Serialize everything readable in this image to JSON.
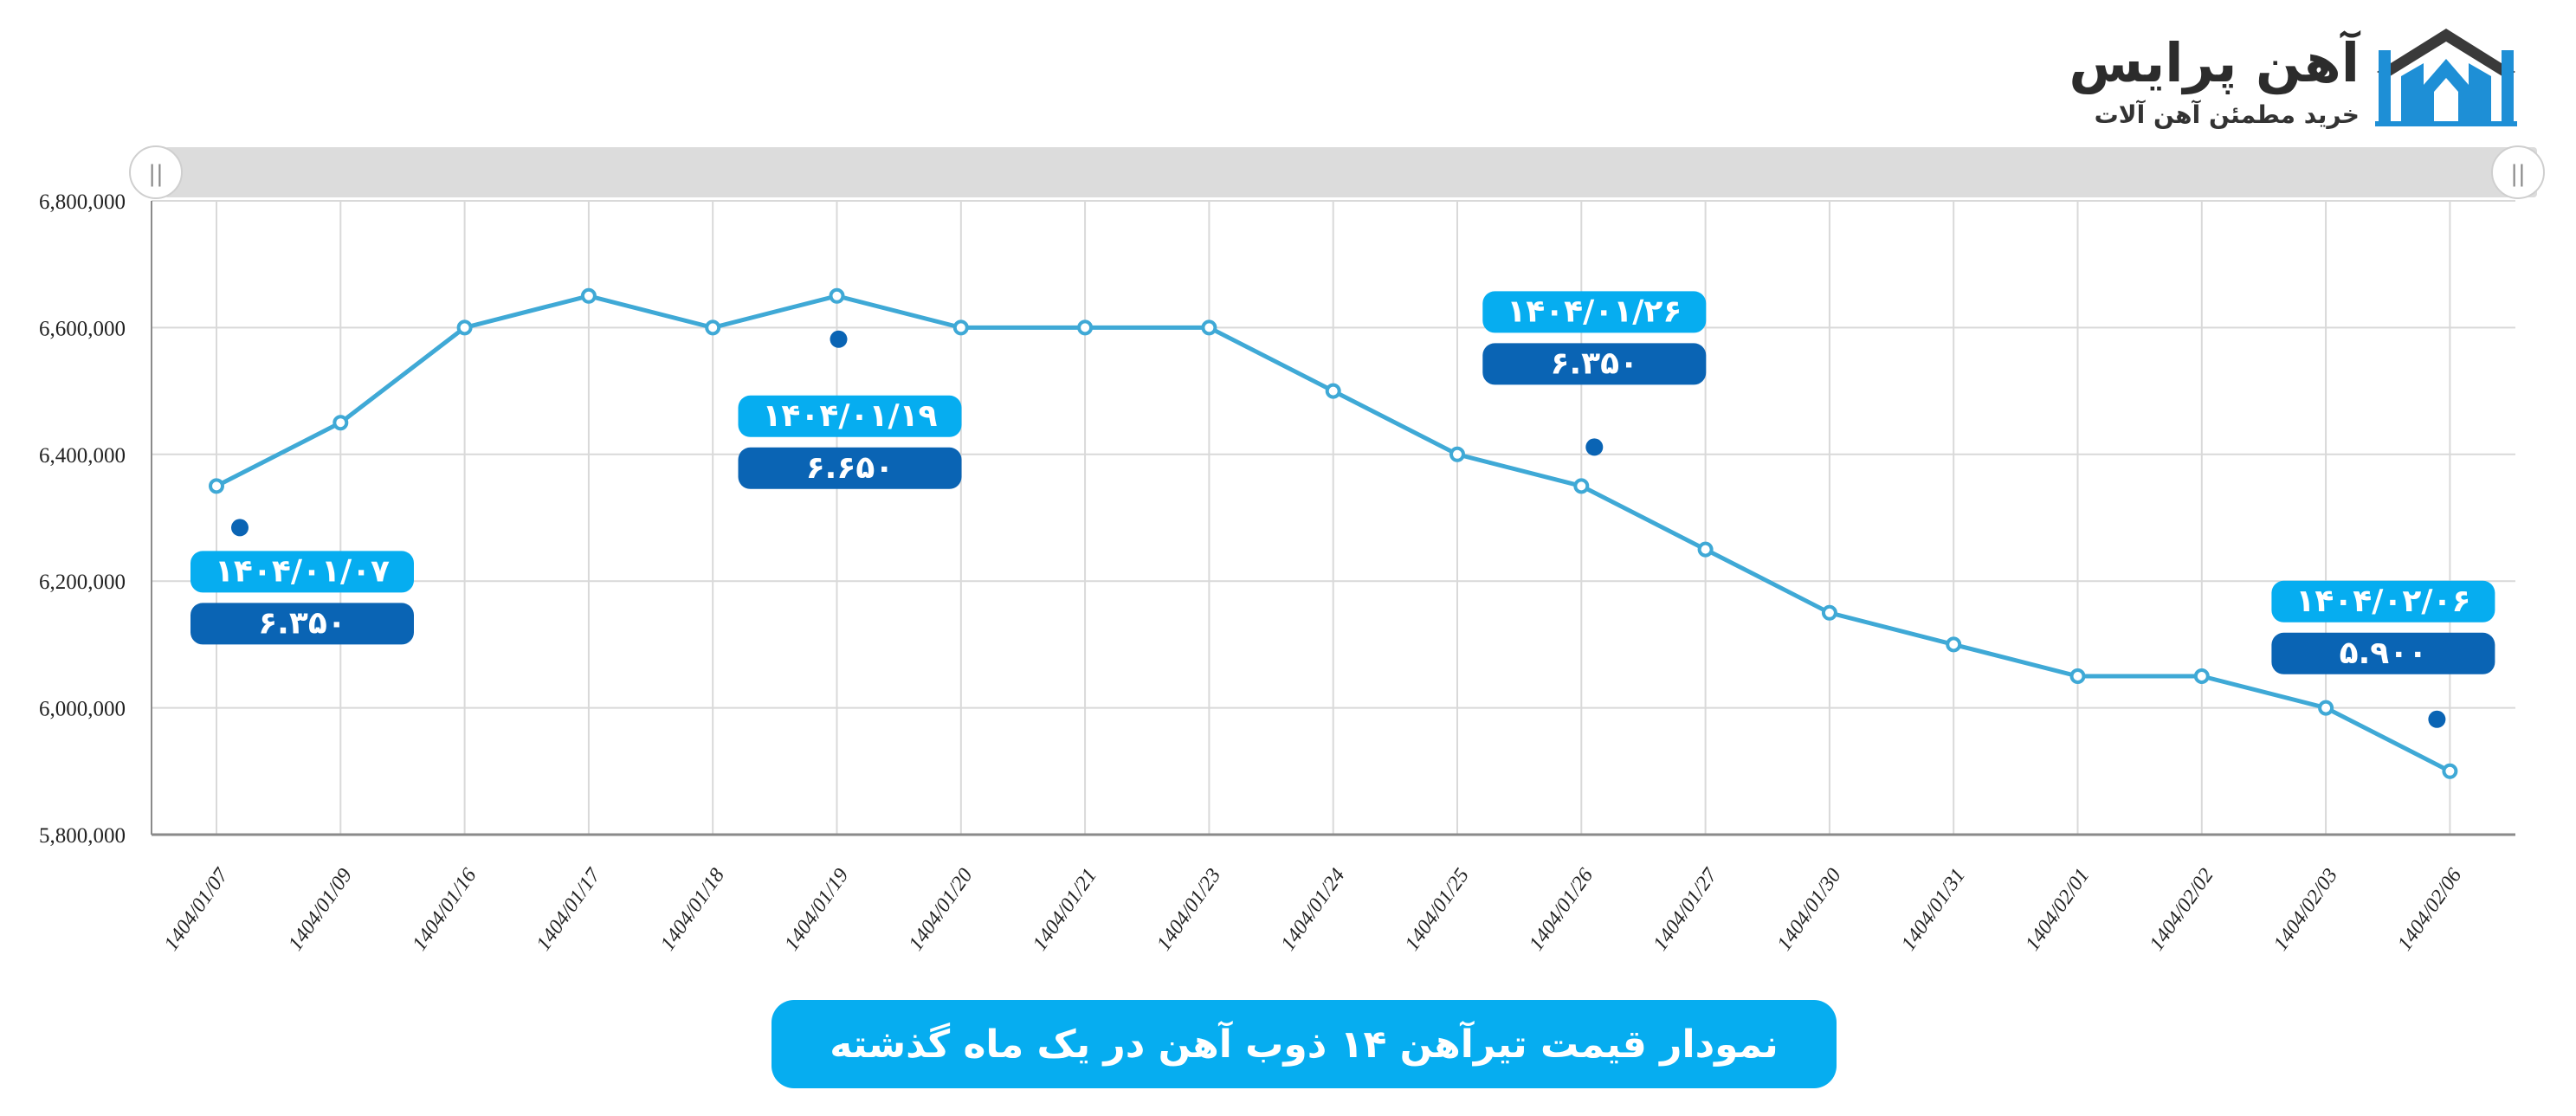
{
  "brand": {
    "name": "آهن پرایس",
    "tagline": "خرید مطمئن آهن آلات",
    "logo_icon": "house-logo-icon"
  },
  "title": "نمودار قیمت تیرآهن ۱۴ ذوب آهن در یک ماه گذشته",
  "colors": {
    "line": "#3fa9d6",
    "date_badge": "#06adf0",
    "value_badge": "#0a64b4",
    "marker": "#0a64b4",
    "title_bg": "#06adf0",
    "grid": "#d9d9d9",
    "scrollbar": "#dcdcdc"
  },
  "chart_data": {
    "type": "line",
    "x": [
      "1404/01/07",
      "1404/01/09",
      "1404/01/16",
      "1404/01/17",
      "1404/01/18",
      "1404/01/19",
      "1404/01/20",
      "1404/01/21",
      "1404/01/23",
      "1404/01/24",
      "1404/01/25",
      "1404/01/26",
      "1404/01/27",
      "1404/01/30",
      "1404/01/31",
      "1404/02/01",
      "1404/02/02",
      "1404/02/03",
      "1404/02/06"
    ],
    "y": [
      6350000,
      6450000,
      6600000,
      6650000,
      6600000,
      6650000,
      6600000,
      6600000,
      6600000,
      6500000,
      6400000,
      6350000,
      6250000,
      6150000,
      6100000,
      6050000,
      6050000,
      6000000,
      5900000
    ],
    "ylim": [
      5800000,
      6800000
    ],
    "yticks": [
      "5,800,000",
      "6,000,000",
      "6,200,000",
      "6,400,000",
      "6,600,000",
      "6,800,000"
    ],
    "grid": true,
    "annotations": [
      {
        "index": 0,
        "date": "۱۴۰۴/۰۱/۰۷",
        "value": "۶.۳۵۰"
      },
      {
        "index": 5,
        "date": "۱۴۰۴/۰۱/۱۹",
        "value": "۶.۶۵۰"
      },
      {
        "index": 11,
        "date": "۱۴۰۴/۰۱/۲۶",
        "value": "۶.۳۵۰"
      },
      {
        "index": 18,
        "date": "۱۴۰۴/۰۲/۰۶",
        "value": "۵.۹۰۰"
      }
    ]
  }
}
